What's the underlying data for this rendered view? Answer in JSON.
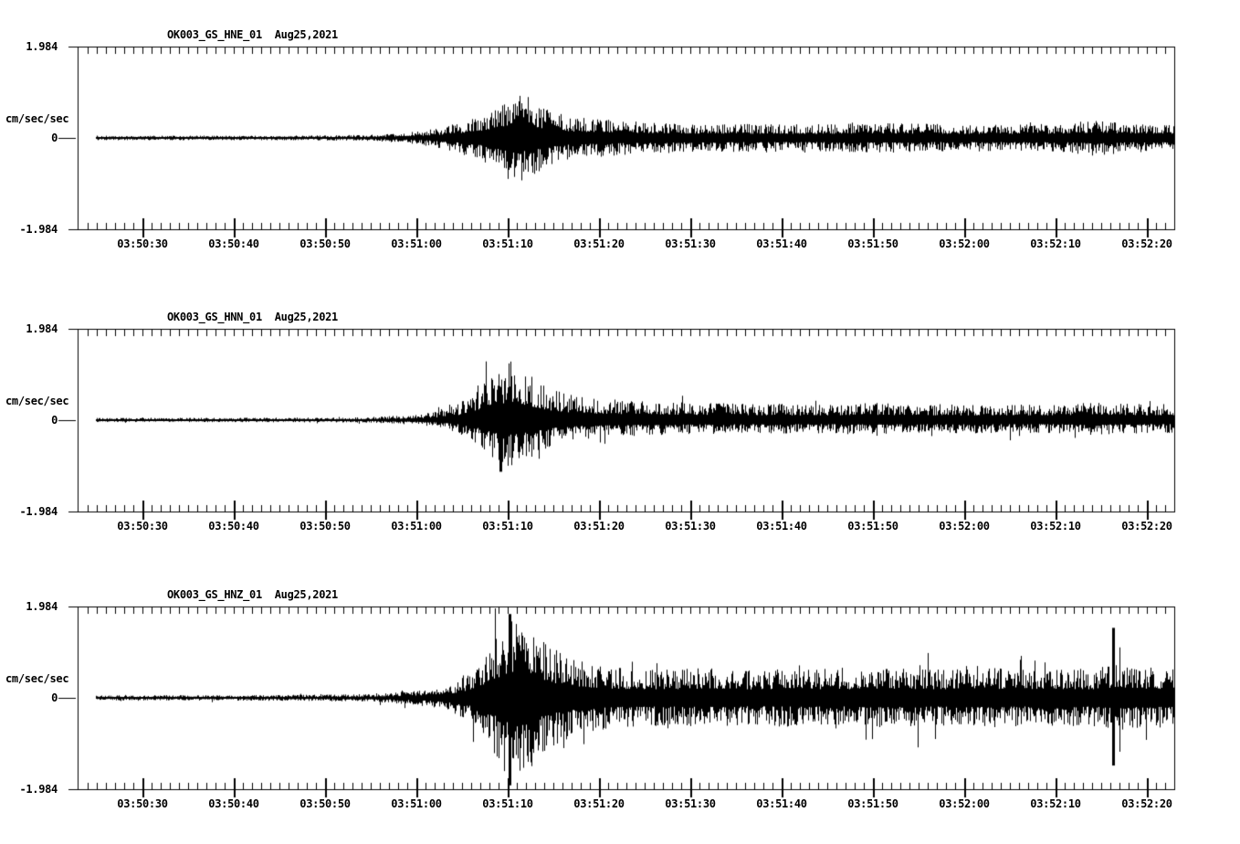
{
  "page": {
    "background": "#ffffff",
    "ink": "#000000"
  },
  "chart_data": {
    "type": "waveform",
    "station": "OK003",
    "network": "GS",
    "date_label": "Aug25,2021",
    "y_axis": {
      "unit_label": "cm/sec/sec",
      "max_label": "1.984",
      "zero_label": "0",
      "min_label": "-1.984",
      "ylim": [
        -1.984,
        1.984
      ]
    },
    "x_axis": {
      "tick_labels": [
        "03:50:30",
        "03:50:40",
        "03:50:50",
        "03:51:00",
        "03:51:10",
        "03:51:20",
        "03:51:30",
        "03:51:40",
        "03:51:50",
        "03:52:00",
        "03:52:10",
        "03:52:20"
      ],
      "tick_seconds": [
        30,
        40,
        50,
        60,
        70,
        80,
        90,
        100,
        110,
        120,
        130,
        140
      ],
      "minor_tick_interval_s": 1,
      "major_tick_interval_s": 10,
      "time_window_start": "03:50:25",
      "time_window_end": "03:52:23"
    },
    "panels": [
      {
        "id": "HNE",
        "title": "OK003_GS_HNE_01  Aug25,2021",
        "channel": "HNE_01",
        "peak_accel_cm_s2": 1.06,
        "seed": 20210825,
        "noise": {
          "min_frac": 0.3,
          "pow": 1.6
        },
        "spike": {
          "p": 0.02,
          "gain": 1.5
        },
        "up_bias": 1.0,
        "dn_bias": 1.0,
        "trace_start_s": 24.9,
        "envelope_cm_s2": [
          [
            24.9,
            0.05
          ],
          [
            40,
            0.05
          ],
          [
            50,
            0.055
          ],
          [
            55,
            0.07
          ],
          [
            58,
            0.1
          ],
          [
            60,
            0.14
          ],
          [
            62,
            0.2
          ],
          [
            64,
            0.3
          ],
          [
            66,
            0.42
          ],
          [
            68,
            0.6
          ],
          [
            69.5,
            0.82
          ],
          [
            71,
            1.06
          ],
          [
            72,
            0.92
          ],
          [
            73.5,
            0.72
          ],
          [
            75,
            0.58
          ],
          [
            77,
            0.47
          ],
          [
            80,
            0.41
          ],
          [
            84,
            0.36
          ],
          [
            90,
            0.32
          ],
          [
            97,
            0.3
          ],
          [
            105,
            0.3
          ],
          [
            112,
            0.32
          ],
          [
            120,
            0.29
          ],
          [
            127,
            0.3
          ],
          [
            131,
            0.31
          ],
          [
            134.5,
            0.4
          ],
          [
            137,
            0.33
          ],
          [
            140,
            0.3
          ],
          [
            143.1,
            0.31
          ]
        ],
        "spikes": []
      },
      {
        "id": "HNN",
        "title": "OK003_GS_HNN_01  Aug25,2021",
        "channel": "HNN_01",
        "peak_accel_cm_s2": 1.2,
        "seed": 20210826,
        "noise": {
          "min_frac": 0.3,
          "pow": 1.6
        },
        "spike": {
          "p": 0.04,
          "gain": 1.6
        },
        "up_bias": 1.08,
        "dn_bias": 0.88,
        "trace_start_s": 24.9,
        "envelope_cm_s2": [
          [
            24.9,
            0.045
          ],
          [
            40,
            0.05
          ],
          [
            50,
            0.055
          ],
          [
            55,
            0.065
          ],
          [
            58,
            0.09
          ],
          [
            60,
            0.12
          ],
          [
            62,
            0.18
          ],
          [
            64,
            0.28
          ],
          [
            66,
            0.5
          ],
          [
            67.5,
            0.78
          ],
          [
            69,
            1.05
          ],
          [
            70.5,
            1.2
          ],
          [
            71.5,
            1.05
          ],
          [
            73,
            0.85
          ],
          [
            74.5,
            0.66
          ],
          [
            76.5,
            0.53
          ],
          [
            79,
            0.45
          ],
          [
            83,
            0.4
          ],
          [
            88,
            0.36
          ],
          [
            95,
            0.34
          ],
          [
            103,
            0.32
          ],
          [
            110,
            0.35
          ],
          [
            118,
            0.32
          ],
          [
            125,
            0.33
          ],
          [
            130,
            0.32
          ],
          [
            134,
            0.39
          ],
          [
            137,
            0.34
          ],
          [
            140,
            0.32
          ],
          [
            143.1,
            0.33
          ]
        ],
        "spikes": [
          {
            "t": 69.2,
            "up": 0.72,
            "dn": 1.12
          }
        ]
      },
      {
        "id": "HNZ",
        "title": "OK003_GS_HNZ_01  Aug25,2021",
        "channel": "HNZ_01",
        "peak_accel_cm_s2": 1.85,
        "seed": 20210827,
        "noise": {
          "min_frac": 0.3,
          "pow": 1.6
        },
        "spike": {
          "p": 0.05,
          "gain": 1.8
        },
        "up_bias": 1.0,
        "dn_bias": 1.0,
        "trace_start_s": 24.9,
        "envelope_cm_s2": [
          [
            24.9,
            0.055
          ],
          [
            40,
            0.06
          ],
          [
            50,
            0.07
          ],
          [
            54,
            0.085
          ],
          [
            57,
            0.11
          ],
          [
            59,
            0.14
          ],
          [
            61,
            0.19
          ],
          [
            63,
            0.27
          ],
          [
            64.5,
            0.38
          ],
          [
            66,
            0.55
          ],
          [
            67.5,
            0.85
          ],
          [
            68.5,
            1.25
          ],
          [
            69.5,
            1.62
          ],
          [
            70.5,
            1.85
          ],
          [
            71.5,
            1.68
          ],
          [
            72.5,
            1.8
          ],
          [
            73.5,
            1.38
          ],
          [
            75,
            1.08
          ],
          [
            76.5,
            0.92
          ],
          [
            78,
            0.8
          ],
          [
            80,
            0.7
          ],
          [
            83,
            0.64
          ],
          [
            87,
            0.62
          ],
          [
            92,
            0.65
          ],
          [
            97,
            0.6
          ],
          [
            102,
            0.64
          ],
          [
            107,
            0.62
          ],
          [
            112,
            0.66
          ],
          [
            117,
            0.62
          ],
          [
            122,
            0.66
          ],
          [
            127,
            0.62
          ],
          [
            131,
            0.64
          ],
          [
            134,
            0.62
          ],
          [
            136.3,
            0.74
          ],
          [
            139,
            0.66
          ],
          [
            143.1,
            0.65
          ]
        ],
        "spikes": [
          {
            "t": 70.2,
            "up": 1.82,
            "dn": 1.9
          },
          {
            "t": 136.3,
            "up": 1.52,
            "dn": 1.47
          }
        ]
      }
    ]
  }
}
